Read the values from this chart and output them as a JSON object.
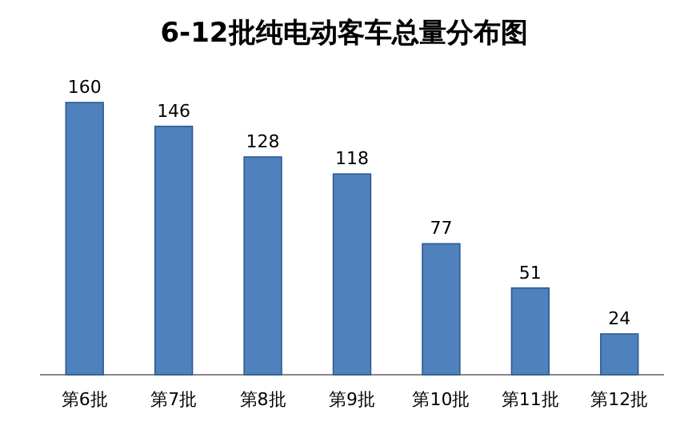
{
  "chart_data": {
    "type": "bar",
    "title": "6-12批纯电动客车总量分布图",
    "categories": [
      "第6批",
      "第7批",
      "第8批",
      "第9批",
      "第10批",
      "第11批",
      "第12批"
    ],
    "values": [
      160,
      146,
      128,
      118,
      77,
      51,
      24
    ],
    "color": "#4f81bd",
    "data_labels": true
  }
}
